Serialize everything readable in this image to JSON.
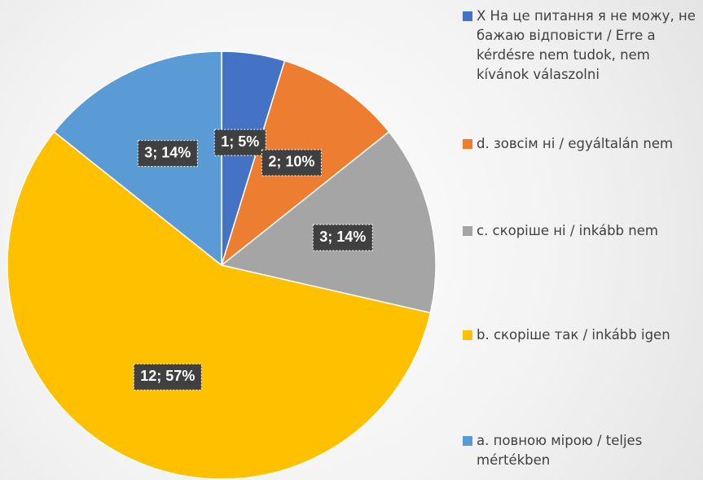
{
  "chart_data": {
    "type": "pie",
    "categories": [
      "X На це питання я не можу, не бажаю відповісти / Erre a kérdésre nem tudok, nem kívánok válaszolni",
      "d. зовсім ні / egyáltalán nem",
      "c. скоріше ні / inkább nem",
      "b. скоріше так / inkább igen",
      "a. повною мірою / teljes mértékben"
    ],
    "values": [
      1,
      2,
      3,
      12,
      3
    ],
    "value_labels": [
      "1; 5%",
      "2; 10%",
      "3; 14%",
      "12; 57%",
      "3; 14%"
    ],
    "colors": [
      "#4472c4",
      "#ed7d31",
      "#a5a5a5",
      "#ffc000",
      "#5b9bd5"
    ],
    "legend": "right"
  }
}
